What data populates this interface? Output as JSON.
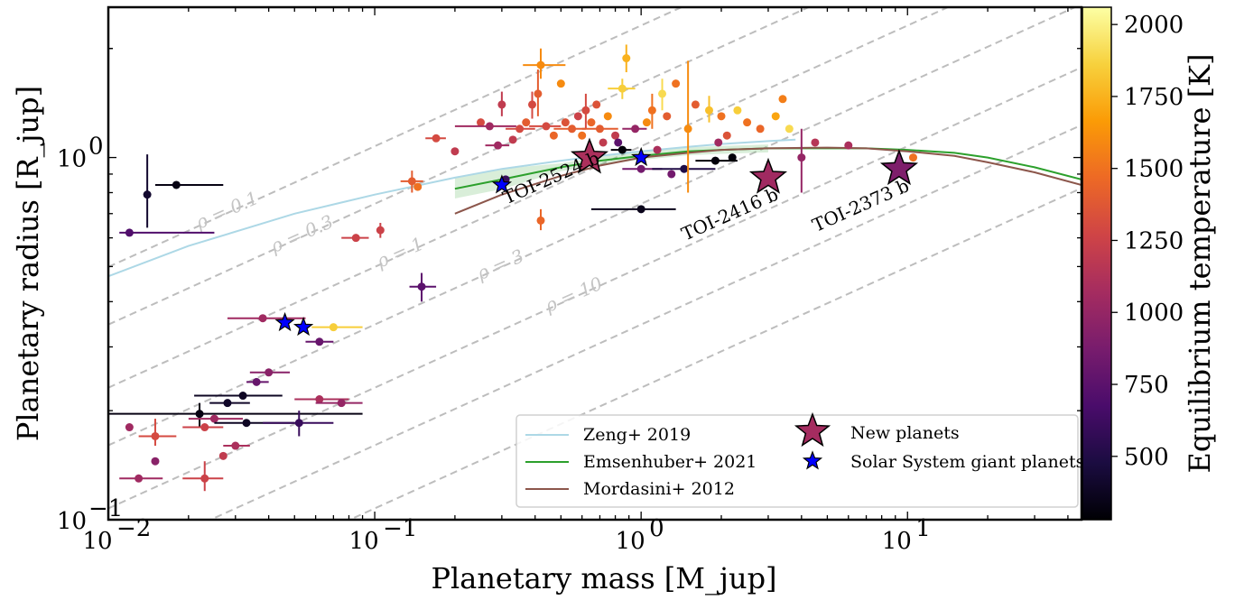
{
  "chart_data": {
    "type": "scatter",
    "xlabel": "Planetary mass [M_jup]",
    "ylabel": "Planetary radius [R_jup]",
    "xscale": "log",
    "yscale": "log",
    "xlim": [
      0.01,
      45
    ],
    "ylim": [
      0.1,
      2.6
    ],
    "x_ticks": [
      {
        "value": 0.01,
        "label": "10",
        "exp": "−2"
      },
      {
        "value": 0.1,
        "label": "10",
        "exp": "−1"
      },
      {
        "value": 1,
        "label": "10",
        "exp": "0"
      },
      {
        "value": 10,
        "label": "10",
        "exp": "1"
      }
    ],
    "y_ticks": [
      {
        "value": 0.1,
        "label": "10",
        "exp": "−1"
      },
      {
        "value": 1,
        "label": "10",
        "exp": "0"
      }
    ],
    "colorbar": {
      "label": "Equilibrium temperature [K]",
      "min": 280,
      "max": 2060,
      "ticks": [
        500,
        750,
        1000,
        1250,
        1500,
        1750,
        2000
      ],
      "colormap": [
        "#000004",
        "#1b0c41",
        "#4a0c6b",
        "#781c6d",
        "#a52c60",
        "#cf4446",
        "#ed6925",
        "#fb9b06",
        "#f7d13d",
        "#fcffa4"
      ]
    },
    "density_lines": [
      {
        "rho": 0.1,
        "label": "ρ = 0.1"
      },
      {
        "rho": 0.3,
        "label": "ρ = 0.3"
      },
      {
        "rho": 1,
        "label": "ρ = 1"
      },
      {
        "rho": 3,
        "label": "ρ = 3"
      },
      {
        "rho": 10,
        "label": "ρ = 10"
      },
      {
        "rho": 30,
        "label": ""
      },
      {
        "rho": 100,
        "label": ""
      }
    ],
    "models": [
      {
        "name": "Zeng+ 2019",
        "color": "#add8e6",
        "x": [
          0.01,
          0.02,
          0.05,
          0.1,
          0.2,
          0.3,
          0.5,
          0.7,
          1,
          1.5,
          2,
          3,
          3.8
        ],
        "y": [
          0.47,
          0.57,
          0.7,
          0.79,
          0.88,
          0.93,
          0.98,
          1.01,
          1.04,
          1.07,
          1.09,
          1.11,
          1.12
        ]
      },
      {
        "name": "Emsenhuber+ 2021",
        "color": "#2ca02c",
        "x": [
          0.2,
          0.3,
          0.5,
          0.7,
          1,
          1.5,
          2,
          3,
          5,
          7,
          10,
          15,
          20,
          30,
          45
        ],
        "y": [
          0.82,
          0.87,
          0.94,
          0.98,
          1.01,
          1.04,
          1.05,
          1.06,
          1.06,
          1.06,
          1.05,
          1.03,
          1.0,
          0.94,
          0.87
        ]
      },
      {
        "name": "Mordasini+ 2012",
        "color": "#8c564b",
        "x": [
          0.2,
          0.3,
          0.5,
          0.7,
          1,
          1.5,
          2,
          3,
          5,
          7,
          10,
          15,
          20,
          30,
          45
        ],
        "y": [
          0.7,
          0.79,
          0.89,
          0.95,
          1.0,
          1.03,
          1.05,
          1.06,
          1.065,
          1.06,
          1.04,
          1.01,
          0.97,
          0.91,
          0.84
        ]
      }
    ],
    "new_planets": {
      "legend": "New planets",
      "points": [
        {
          "name": "TOI-2524 b",
          "x": 0.64,
          "y": 1.0,
          "teq": 1100
        },
        {
          "name": "TOI-2416 b",
          "x": 3.0,
          "y": 0.88,
          "teq": 1050
        },
        {
          "name": "TOI-2373 b",
          "x": 9.3,
          "y": 0.93,
          "teq": 900
        }
      ]
    },
    "solar_system": {
      "legend": "Solar System giant planets",
      "points": [
        {
          "x": 0.046,
          "y": 0.35
        },
        {
          "x": 0.054,
          "y": 0.34
        },
        {
          "x": 0.3,
          "y": 0.84
        },
        {
          "x": 1.0,
          "y": 1.0
        }
      ]
    },
    "known_planets": [
      {
        "x": 0.012,
        "y": 0.62,
        "teq": 700,
        "xe": [
          0.011,
          0.025
        ]
      },
      {
        "x": 0.014,
        "y": 0.79,
        "teq": 420,
        "ye": [
          0.64,
          1.02
        ]
      },
      {
        "x": 0.018,
        "y": 0.84,
        "teq": 330,
        "xe": [
          0.015,
          0.027
        ]
      },
      {
        "x": 0.012,
        "y": 0.18,
        "teq": 1050
      },
      {
        "x": 0.013,
        "y": 0.13,
        "teq": 1050,
        "xe": [
          0.011,
          0.016
        ]
      },
      {
        "x": 0.015,
        "y": 0.17,
        "teq": 1300,
        "xe": [
          0.013,
          0.018
        ],
        "ye": [
          0.16,
          0.19
        ]
      },
      {
        "x": 0.015,
        "y": 0.145,
        "teq": 950
      },
      {
        "x": 0.022,
        "y": 0.196,
        "teq": 330,
        "xe": [
          0.01,
          0.09
        ],
        "ye": [
          0.18,
          0.21
        ]
      },
      {
        "x": 0.023,
        "y": 0.13,
        "teq": 1250,
        "xe": [
          0.019,
          0.027
        ],
        "ye": [
          0.12,
          0.145
        ]
      },
      {
        "x": 0.023,
        "y": 0.18,
        "teq": 1250,
        "xe": [
          0.019,
          0.027
        ]
      },
      {
        "x": 0.025,
        "y": 0.19,
        "teq": 1050,
        "xe": [
          0.02,
          0.032
        ]
      },
      {
        "x": 0.027,
        "y": 0.15,
        "teq": 1200
      },
      {
        "x": 0.028,
        "y": 0.21,
        "teq": 400,
        "xe": [
          0.024,
          0.034
        ]
      },
      {
        "x": 0.03,
        "y": 0.16,
        "teq": 1100,
        "xe": [
          0.027,
          0.034
        ]
      },
      {
        "x": 0.032,
        "y": 0.22,
        "teq": 380,
        "xe": [
          0.021,
          0.045
        ]
      },
      {
        "x": 0.033,
        "y": 0.185,
        "teq": 380,
        "xe": [
          0.025,
          0.05
        ]
      },
      {
        "x": 0.036,
        "y": 0.24,
        "teq": 800,
        "xe": [
          0.033,
          0.04
        ]
      },
      {
        "x": 0.038,
        "y": 0.36,
        "teq": 1050,
        "xe": [
          0.028,
          0.055
        ]
      },
      {
        "x": 0.04,
        "y": 0.255,
        "teq": 950,
        "xe": [
          0.034,
          0.048
        ]
      },
      {
        "x": 0.052,
        "y": 0.185,
        "teq": 600,
        "xe": [
          0.038,
          0.07
        ],
        "ye": [
          0.17,
          0.2
        ]
      },
      {
        "x": 0.062,
        "y": 0.31,
        "teq": 800,
        "xe": [
          0.055,
          0.07
        ]
      },
      {
        "x": 0.062,
        "y": 0.215,
        "teq": 1100,
        "xe": [
          0.05,
          0.08
        ]
      },
      {
        "x": 0.07,
        "y": 0.34,
        "teq": 1850,
        "xe": [
          0.058,
          0.09
        ]
      },
      {
        "x": 0.075,
        "y": 0.21,
        "teq": 1000,
        "xe": [
          0.06,
          0.09
        ]
      },
      {
        "x": 0.085,
        "y": 0.6,
        "teq": 1250,
        "xe": [
          0.075,
          0.095
        ]
      },
      {
        "x": 0.105,
        "y": 0.63,
        "teq": 1250,
        "ye": [
          0.6,
          0.66
        ]
      },
      {
        "x": 0.138,
        "y": 0.86,
        "teq": 1400,
        "xe": [
          0.125,
          0.152
        ],
        "ye": [
          0.8,
          0.92
        ]
      },
      {
        "x": 0.145,
        "y": 0.83,
        "teq": 1500
      },
      {
        "x": 0.15,
        "y": 0.44,
        "teq": 750,
        "xe": [
          0.135,
          0.17
        ],
        "ye": [
          0.4,
          0.48
        ]
      },
      {
        "x": 0.17,
        "y": 1.13,
        "teq": 1300,
        "xe": [
          0.155,
          0.185
        ]
      },
      {
        "x": 0.2,
        "y": 1.04,
        "teq": 1200
      },
      {
        "x": 0.25,
        "y": 1.25,
        "teq": 1300
      },
      {
        "x": 0.27,
        "y": 1.22,
        "teq": 1050,
        "xe": [
          0.2,
          0.34
        ]
      },
      {
        "x": 0.29,
        "y": 1.08,
        "teq": 1050,
        "xe": [
          0.26,
          0.32
        ]
      },
      {
        "x": 0.3,
        "y": 1.4,
        "teq": 1200,
        "ye": [
          1.3,
          1.52
        ]
      },
      {
        "x": 0.31,
        "y": 0.87,
        "teq": 600
      },
      {
        "x": 0.33,
        "y": 1.12,
        "teq": 1200
      },
      {
        "x": 0.35,
        "y": 1.2,
        "teq": 1300,
        "xe": [
          0.31,
          0.4
        ]
      },
      {
        "x": 0.37,
        "y": 1.25,
        "teq": 1400
      },
      {
        "x": 0.39,
        "y": 1.4,
        "teq": 1300,
        "ye": [
          1.28,
          1.52
        ]
      },
      {
        "x": 0.41,
        "y": 1.5,
        "teq": 1400,
        "ye": [
          1.3,
          1.75
        ]
      },
      {
        "x": 0.42,
        "y": 1.8,
        "teq": 1600,
        "xe": [
          0.36,
          0.52
        ],
        "ye": [
          1.65,
          2.0
        ]
      },
      {
        "x": 0.42,
        "y": 0.67,
        "teq": 1450,
        "ye": [
          0.63,
          0.72
        ]
      },
      {
        "x": 0.44,
        "y": 1.22,
        "teq": 1300,
        "xe": [
          0.38,
          0.5
        ]
      },
      {
        "x": 0.47,
        "y": 1.15,
        "teq": 1450
      },
      {
        "x": 0.5,
        "y": 1.6,
        "teq": 1600
      },
      {
        "x": 0.52,
        "y": 1.25,
        "teq": 1350
      },
      {
        "x": 0.55,
        "y": 1.2,
        "teq": 1400,
        "xe": [
          0.47,
          0.62
        ]
      },
      {
        "x": 0.58,
        "y": 1.3,
        "teq": 1250
      },
      {
        "x": 0.6,
        "y": 1.15,
        "teq": 1500
      },
      {
        "x": 0.62,
        "y": 1.35,
        "teq": 1300,
        "ye": [
          1.2,
          1.5
        ]
      },
      {
        "x": 0.65,
        "y": 1.25,
        "teq": 1450
      },
      {
        "x": 0.68,
        "y": 1.4,
        "teq": 1350
      },
      {
        "x": 0.7,
        "y": 1.2,
        "teq": 1400,
        "xe": [
          0.6,
          0.82
        ]
      },
      {
        "x": 0.72,
        "y": 1.1,
        "teq": 1200
      },
      {
        "x": 0.75,
        "y": 1.3,
        "teq": 1600
      },
      {
        "x": 0.8,
        "y": 1.15,
        "teq": 1200
      },
      {
        "x": 0.82,
        "y": 1.1,
        "teq": 750
      },
      {
        "x": 0.85,
        "y": 1.05,
        "teq": 300,
        "xe": [
          0.77,
          0.92
        ]
      },
      {
        "x": 0.88,
        "y": 1.88,
        "teq": 1750,
        "ye": [
          1.72,
          2.05
        ]
      },
      {
        "x": 0.85,
        "y": 1.55,
        "teq": 1850,
        "xe": [
          0.75,
          0.95
        ],
        "ye": [
          1.45,
          1.65
        ]
      },
      {
        "x": 0.95,
        "y": 1.2,
        "teq": 1000,
        "xe": [
          0.85,
          1.05
        ]
      },
      {
        "x": 1.0,
        "y": 0.72,
        "teq": 350,
        "xe": [
          0.65,
          1.35
        ]
      },
      {
        "x": 1.0,
        "y": 0.93,
        "teq": 850,
        "xe": [
          0.85,
          1.2
        ]
      },
      {
        "x": 1.05,
        "y": 1.25,
        "teq": 1600
      },
      {
        "x": 1.1,
        "y": 1.35,
        "teq": 1500,
        "ye": [
          1.2,
          1.5
        ]
      },
      {
        "x": 1.15,
        "y": 1.05,
        "teq": 1100
      },
      {
        "x": 1.2,
        "y": 1.5,
        "teq": 1900,
        "ye": [
          1.35,
          1.65
        ]
      },
      {
        "x": 1.25,
        "y": 1.3,
        "teq": 1400
      },
      {
        "x": 1.3,
        "y": 0.9,
        "teq": 850
      },
      {
        "x": 1.35,
        "y": 1.6,
        "teq": 1500
      },
      {
        "x": 1.45,
        "y": 0.93,
        "teq": 500,
        "xe": [
          1.1,
          1.9
        ]
      },
      {
        "x": 1.5,
        "y": 1.2,
        "teq": 1600,
        "ye": [
          0.8,
          1.85
        ]
      },
      {
        "x": 1.6,
        "y": 1.4,
        "teq": 1400
      },
      {
        "x": 1.8,
        "y": 1.35,
        "teq": 1800,
        "ye": [
          1.25,
          1.48
        ]
      },
      {
        "x": 1.9,
        "y": 0.98,
        "teq": 300,
        "xe": [
          1.6,
          2.3
        ]
      },
      {
        "x": 1.95,
        "y": 1.1,
        "teq": 1050
      },
      {
        "x": 2.0,
        "y": 1.3,
        "teq": 1500
      },
      {
        "x": 2.1,
        "y": 1.15,
        "teq": 1350
      },
      {
        "x": 2.2,
        "y": 1.0,
        "teq": 300
      },
      {
        "x": 2.3,
        "y": 1.35,
        "teq": 1850
      },
      {
        "x": 2.5,
        "y": 1.25,
        "teq": 1500
      },
      {
        "x": 2.8,
        "y": 1.2,
        "teq": 1450
      },
      {
        "x": 3.2,
        "y": 1.3,
        "teq": 1700
      },
      {
        "x": 3.4,
        "y": 1.45,
        "teq": 1550
      },
      {
        "x": 3.6,
        "y": 1.2,
        "teq": 1900
      },
      {
        "x": 4.0,
        "y": 1.0,
        "teq": 1000,
        "ye": [
          0.8,
          1.2
        ]
      },
      {
        "x": 4.5,
        "y": 1.1,
        "teq": 1150
      },
      {
        "x": 6.0,
        "y": 1.08,
        "teq": 1100
      },
      {
        "x": 10.5,
        "y": 1.0,
        "teq": 1500
      }
    ],
    "annotations": [
      "TOI-2524 b",
      "TOI-2416 b",
      "TOI-2373 b"
    ],
    "legend": {
      "placement": "lower-right",
      "columns": 2
    }
  }
}
